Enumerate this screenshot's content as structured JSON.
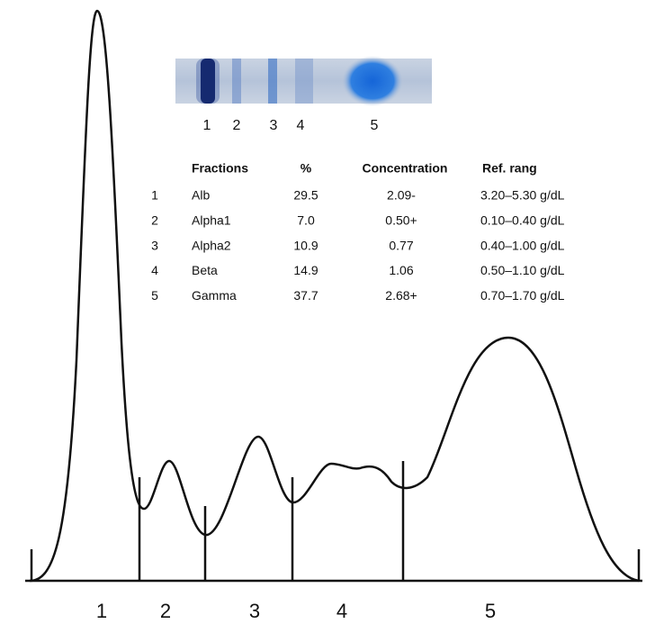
{
  "gel_labels": [
    "1",
    "2",
    "3",
    "4",
    "5"
  ],
  "table": {
    "header": [
      "Fractions",
      "%",
      "Concentration",
      "Ref. rang"
    ],
    "rows": [
      [
        "1",
        "Alb",
        "29.5",
        "2.09-",
        "3.20–5.30 g/dL"
      ],
      [
        "2",
        "Alpha1",
        "7.0",
        "0.50+",
        "0.10–0.40 g/dL"
      ],
      [
        "3",
        "Alpha2",
        "10.9",
        "0.77",
        "0.40–1.00 g/dL"
      ],
      [
        "4",
        "Beta",
        "14.9",
        "1.06",
        "0.50–1.10 g/dL"
      ],
      [
        "5",
        "Gamma",
        "37.7",
        "2.68+",
        "0.70–1.70 g/dL"
      ]
    ]
  },
  "fraction_labels": [
    "1",
    "2",
    "3",
    "4",
    "5"
  ]
}
